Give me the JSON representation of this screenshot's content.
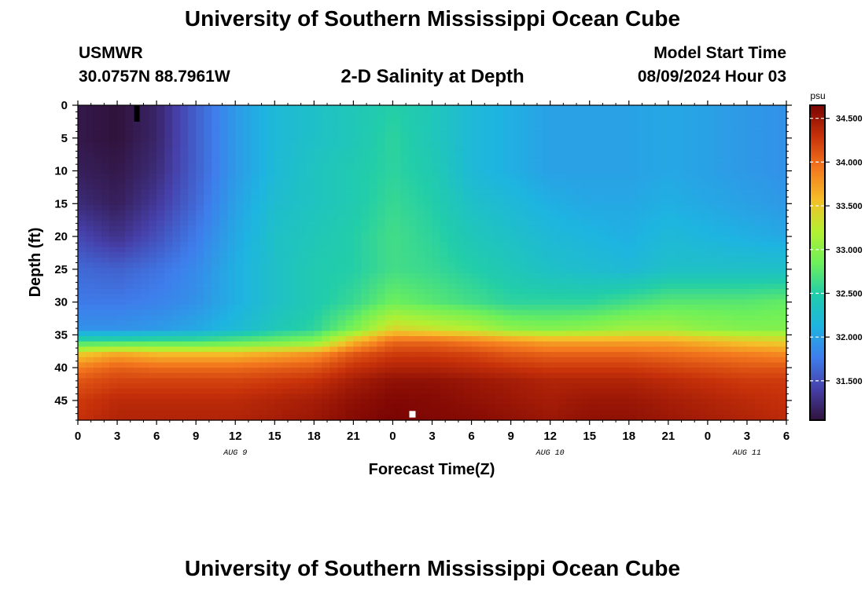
{
  "header": {
    "title": "University of Southern Mississippi Ocean Cube",
    "station": "USMWR",
    "coords": "30.0757N  88.7961W",
    "subtitle": "2-D Salinity at Depth",
    "model_label": "Model Start Time",
    "model_time": "08/09/2024 Hour 03"
  },
  "footer": {
    "title": "University of Southern Mississippi Ocean Cube"
  },
  "chart_data": {
    "type": "heatmap",
    "xlabel": "Forecast Time(Z)",
    "ylabel": "Depth (ft)",
    "x_hours_range": [
      0,
      54
    ],
    "y_range": [
      0,
      48
    ],
    "y_inverted": true,
    "x_ticks": [
      "0",
      "3",
      "6",
      "9",
      "12",
      "15",
      "18",
      "21",
      "0",
      "3",
      "6",
      "9",
      "12",
      "15",
      "18",
      "21",
      "0",
      "3",
      "6"
    ],
    "y_ticks": [
      "0",
      "5",
      "10",
      "15",
      "20",
      "25",
      "30",
      "35",
      "40",
      "45"
    ],
    "day_labels": [
      {
        "label": "AUG 9",
        "hour": 12
      },
      {
        "label": "AUG 10",
        "hour": 36
      },
      {
        "label": "AUG 11",
        "hour": 51
      }
    ],
    "colorbar": {
      "unit": "psu",
      "range": [
        31.05,
        34.65
      ],
      "ticks": [
        "34.500",
        "34.000",
        "33.500",
        "33.000",
        "32.500",
        "32.000",
        "31.500"
      ],
      "tick_values": [
        34.5,
        34.0,
        33.5,
        33.0,
        32.5,
        32.0,
        31.5
      ]
    },
    "salinity_grid": {
      "x_hours": [
        0,
        3,
        6,
        9,
        12,
        15,
        18,
        21,
        24,
        27,
        30,
        33,
        36,
        39,
        42,
        45,
        48,
        51,
        54
      ],
      "depths_ft": [
        0,
        5,
        10,
        15,
        20,
        25,
        30,
        34,
        36,
        38,
        40,
        42,
        45,
        48
      ],
      "values": [
        [
          31.1,
          31.05,
          31.2,
          31.6,
          31.95,
          32.2,
          32.3,
          32.4,
          32.5,
          32.4,
          32.2,
          32.1,
          32.0,
          32.0,
          32.0,
          32.05,
          32.0,
          31.95,
          31.9
        ],
        [
          31.1,
          31.05,
          31.2,
          31.6,
          31.95,
          32.2,
          32.3,
          32.4,
          32.55,
          32.4,
          32.2,
          32.1,
          32.0,
          32.0,
          32.0,
          32.05,
          32.0,
          31.95,
          31.9
        ],
        [
          31.15,
          31.1,
          31.25,
          31.6,
          31.95,
          32.2,
          32.35,
          32.45,
          32.55,
          32.45,
          32.2,
          32.1,
          32.0,
          32.0,
          32.0,
          32.05,
          32.0,
          31.95,
          31.9
        ],
        [
          31.25,
          31.15,
          31.35,
          31.65,
          32.0,
          32.25,
          32.35,
          32.45,
          32.6,
          32.5,
          32.3,
          32.2,
          32.1,
          32.05,
          32.05,
          32.1,
          32.05,
          32.0,
          31.95
        ],
        [
          31.45,
          31.3,
          31.5,
          31.75,
          32.05,
          32.3,
          32.4,
          32.5,
          32.65,
          32.55,
          32.4,
          32.3,
          32.2,
          32.15,
          32.1,
          32.2,
          32.15,
          32.1,
          32.05
        ],
        [
          31.65,
          31.6,
          31.7,
          31.85,
          32.1,
          32.3,
          32.45,
          32.5,
          32.65,
          32.6,
          32.5,
          32.4,
          32.3,
          32.25,
          32.2,
          32.3,
          32.3,
          32.3,
          32.3
        ],
        [
          31.75,
          31.75,
          31.8,
          31.9,
          32.1,
          32.3,
          32.45,
          32.6,
          32.85,
          32.75,
          32.65,
          32.55,
          32.55,
          32.55,
          32.65,
          32.75,
          32.75,
          32.75,
          32.8
        ],
        [
          31.9,
          31.9,
          31.95,
          32.05,
          32.2,
          32.4,
          32.55,
          32.9,
          33.4,
          33.3,
          33.2,
          33.0,
          32.95,
          33.0,
          33.1,
          33.1,
          33.0,
          32.95,
          32.95
        ],
        [
          32.6,
          32.6,
          32.65,
          32.65,
          32.75,
          32.85,
          32.95,
          33.6,
          34.0,
          34.0,
          33.9,
          33.8,
          33.7,
          33.7,
          33.7,
          33.7,
          33.6,
          33.5,
          33.45
        ],
        [
          33.5,
          33.7,
          33.6,
          33.6,
          33.6,
          33.7,
          33.8,
          34.1,
          34.25,
          34.25,
          34.2,
          34.1,
          34.05,
          34.05,
          34.05,
          34.0,
          33.95,
          33.9,
          33.85
        ],
        [
          33.9,
          34.05,
          34.0,
          34.0,
          34.0,
          34.05,
          34.1,
          34.3,
          34.4,
          34.4,
          34.35,
          34.3,
          34.25,
          34.25,
          34.25,
          34.2,
          34.15,
          34.1,
          34.1
        ],
        [
          34.1,
          34.2,
          34.2,
          34.2,
          34.2,
          34.25,
          34.3,
          34.45,
          34.55,
          34.55,
          34.5,
          34.45,
          34.4,
          34.4,
          34.4,
          34.35,
          34.3,
          34.25,
          34.25
        ],
        [
          34.25,
          34.35,
          34.35,
          34.35,
          34.35,
          34.4,
          34.45,
          34.55,
          34.62,
          34.6,
          34.55,
          34.5,
          34.45,
          34.5,
          34.5,
          34.45,
          34.4,
          34.35,
          34.3
        ],
        [
          34.3,
          34.4,
          34.4,
          34.4,
          34.4,
          34.45,
          34.5,
          34.6,
          34.65,
          34.62,
          34.6,
          34.55,
          34.5,
          34.55,
          34.55,
          34.5,
          34.45,
          34.4,
          34.35
        ]
      ]
    },
    "markers": [
      {
        "hour": 4.5,
        "depth_from": 0,
        "depth_to": 2.5,
        "color": "#000000"
      },
      {
        "hour": 25.5,
        "depth_from": 46.6,
        "depth_to": 47.6,
        "color": "#ffffff"
      }
    ]
  }
}
